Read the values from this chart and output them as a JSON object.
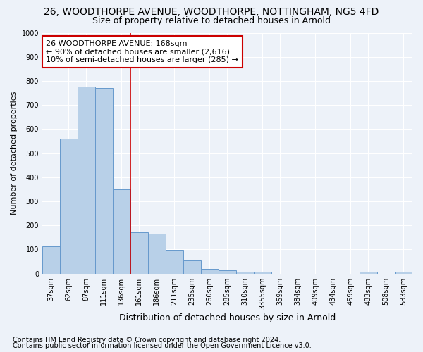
{
  "title1": "26, WOODTHORPE AVENUE, WOODTHORPE, NOTTINGHAM, NG5 4FD",
  "title2": "Size of property relative to detached houses in Arnold",
  "xlabel": "Distribution of detached houses by size in Arnold",
  "ylabel": "Number of detached properties",
  "categories": [
    "37sqm",
    "62sqm",
    "87sqm",
    "111sqm",
    "136sqm",
    "161sqm",
    "186sqm",
    "211sqm",
    "235sqm",
    "260sqm",
    "285sqm",
    "310sqm",
    "3355sqm",
    "359sqm",
    "384sqm",
    "409sqm",
    "434sqm",
    "459sqm",
    "483sqm",
    "508sqm",
    "533sqm"
  ],
  "values": [
    112,
    560,
    775,
    770,
    350,
    170,
    165,
    97,
    55,
    20,
    13,
    8,
    8,
    0,
    0,
    0,
    0,
    0,
    8,
    0,
    8
  ],
  "bar_color": "#b8d0e8",
  "bar_edge_color": "#6699cc",
  "vline_x": 5,
  "vline_color": "#cc0000",
  "annotation_text": "26 WOODTHORPE AVENUE: 168sqm\n← 90% of detached houses are smaller (2,616)\n10% of semi-detached houses are larger (285) →",
  "annotation_box_color": "#ffffff",
  "annotation_box_edge_color": "#cc0000",
  "ylim": [
    0,
    1000
  ],
  "yticks": [
    0,
    100,
    200,
    300,
    400,
    500,
    600,
    700,
    800,
    900,
    1000
  ],
  "footer1": "Contains HM Land Registry data © Crown copyright and database right 2024.",
  "footer2": "Contains public sector information licensed under the Open Government Licence v3.0.",
  "bg_color": "#edf2f9",
  "grid_color": "#ffffff",
  "title1_fontsize": 10,
  "title2_fontsize": 9,
  "ylabel_fontsize": 8,
  "xlabel_fontsize": 9,
  "tick_fontsize": 7,
  "annotation_fontsize": 8,
  "footer_fontsize": 7
}
